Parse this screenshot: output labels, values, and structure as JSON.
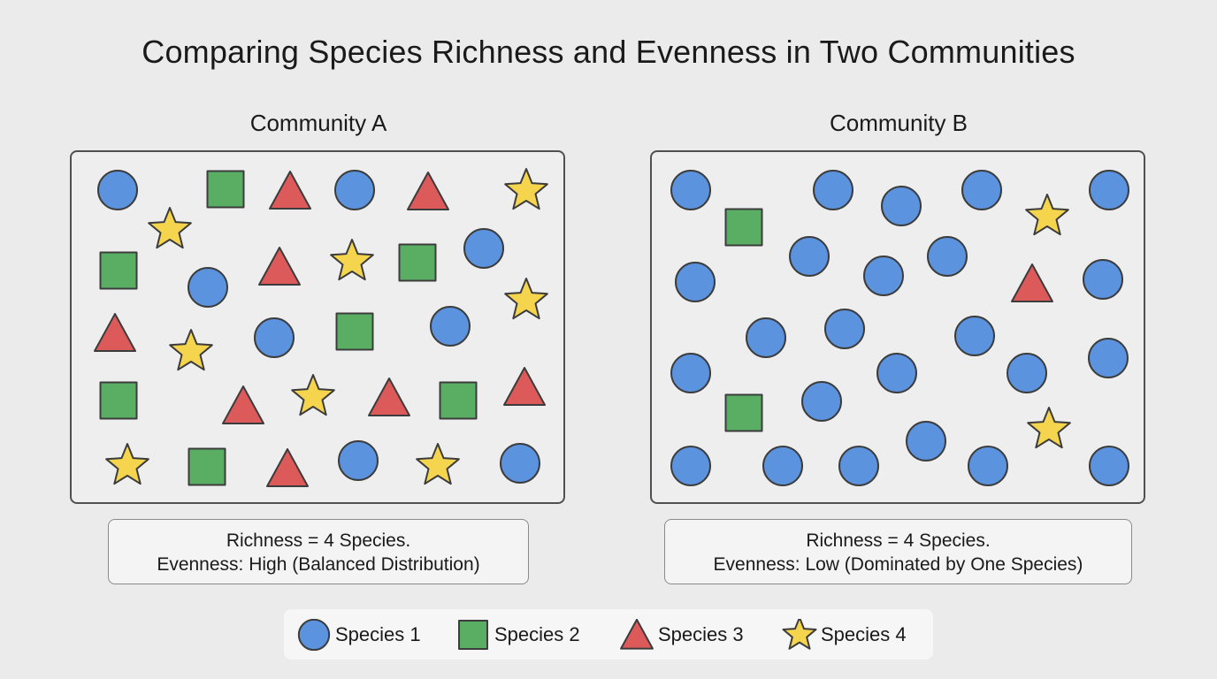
{
  "title": "Comparing Species Richness and Evenness in Two Communities",
  "colors": {
    "species_1": "#5b93df",
    "species_2": "#5aae63",
    "species_3": "#dc5a5a",
    "species_4": "#f5d44e",
    "outline": "#3c3c3c"
  },
  "community_a": {
    "title": "Community A",
    "richness": "Richness = 4 Species.",
    "evenness": "Evenness: High (Balanced Distribution)",
    "counts": {
      "species_1": 8,
      "species_2": 7,
      "species_3": 8,
      "species_4": 8
    }
  },
  "community_b": {
    "title": "Community B",
    "richness": "Richness = 4 Species.",
    "evenness": "Evenness: Low (Dominated by One Species)",
    "counts": {
      "species_1": 26,
      "species_2": 2,
      "species_3": 1,
      "species_4": 2
    }
  },
  "legend": [
    {
      "shape": "circle-icon",
      "label": "Species 1"
    },
    {
      "shape": "square-icon",
      "label": "Species 2"
    },
    {
      "shape": "triangle-icon",
      "label": "Species 3"
    },
    {
      "shape": "star-icon",
      "label": "Species 4"
    }
  ]
}
